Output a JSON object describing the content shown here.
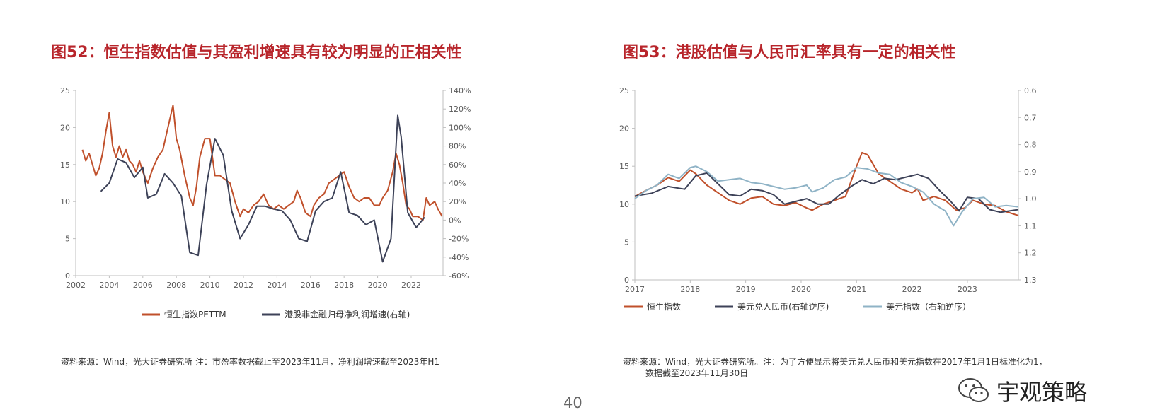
{
  "page": {
    "number": "40",
    "logo_text": "宇观策略",
    "logo_icon": "wechat-icon"
  },
  "left": {
    "title": "图52：恒生指数估值与其盈利增速具有较为明显的正相关性",
    "note": "资料来源：Wind，光大证券研究所  注：市盈率数据截止至2023年11月，净利润增速截至2023年H1"
  },
  "right": {
    "title": "图53：港股估值与人民币汇率具有一定的相关性",
    "note_line1": "资料来源：Wind，光大证券研究所。注：为了方便显示将美元兑人民币和美元指数在2017年1月1日标准化为1，",
    "note_line2": "数据截至2023年11月30日"
  },
  "colors": {
    "red": "#c0502b",
    "navy": "#3d4258",
    "lightblue": "#8fb3c6",
    "axis": "#bfbfbf",
    "tick": "#595959"
  },
  "chart_data": [
    {
      "type": "line",
      "title": "",
      "xlim": [
        2002,
        2023.9
      ],
      "ylim": [
        0,
        25
      ],
      "ylim_right": [
        -60,
        140
      ],
      "x_ticks": [
        2002,
        2004,
        2006,
        2008,
        2010,
        2012,
        2014,
        2016,
        2018,
        2020,
        2022
      ],
      "y_ticks": [
        0,
        5,
        10,
        15,
        20,
        25
      ],
      "y_right_ticks": [
        "-60%",
        "-40%",
        "-20%",
        "0%",
        "20%",
        "40%",
        "60%",
        "80%",
        "100%",
        "120%",
        "140%"
      ],
      "legend_position": "bottom",
      "series": [
        {
          "name": "恒生指数PETTM",
          "axis": "left",
          "color": "#c0502b",
          "x": [
            2002.4,
            2002.6,
            2002.8,
            2003.0,
            2003.2,
            2003.4,
            2003.6,
            2003.8,
            2004.0,
            2004.2,
            2004.4,
            2004.6,
            2004.8,
            2005.0,
            2005.2,
            2005.4,
            2005.6,
            2005.8,
            2006.0,
            2006.3,
            2006.6,
            2006.9,
            2007.2,
            2007.5,
            2007.8,
            2008.0,
            2008.2,
            2008.5,
            2008.8,
            2009.0,
            2009.2,
            2009.4,
            2009.7,
            2010.0,
            2010.3,
            2010.6,
            2010.9,
            2011.2,
            2011.5,
            2011.8,
            2012.0,
            2012.3,
            2012.6,
            2012.9,
            2013.2,
            2013.5,
            2013.8,
            2014.1,
            2014.4,
            2014.7,
            2015.0,
            2015.2,
            2015.4,
            2015.7,
            2016.0,
            2016.2,
            2016.5,
            2016.8,
            2017.1,
            2017.4,
            2017.7,
            2018.0,
            2018.3,
            2018.6,
            2018.9,
            2019.2,
            2019.5,
            2019.8,
            2020.1,
            2020.3,
            2020.6,
            2020.9,
            2021.1,
            2021.3,
            2021.5,
            2021.7,
            2021.9,
            2022.1,
            2022.4,
            2022.7,
            2022.9,
            2023.1,
            2023.4,
            2023.6,
            2023.85
          ],
          "y": [
            17,
            15.5,
            16.5,
            15,
            13.5,
            14.5,
            16.5,
            19.5,
            22,
            17.5,
            16,
            17.5,
            16,
            17,
            15.5,
            15,
            14,
            15.5,
            14,
            12.5,
            14.5,
            16,
            17,
            20,
            23,
            18.5,
            17,
            13.5,
            10.5,
            9.5,
            12,
            16,
            18.5,
            18.5,
            13.5,
            13.5,
            13,
            12.5,
            10,
            8,
            9,
            8.5,
            9.5,
            10,
            11,
            9.5,
            9,
            9.5,
            9,
            9.5,
            10,
            11.5,
            10.5,
            8.5,
            8,
            9.5,
            10.5,
            11,
            12.5,
            13,
            13.5,
            14,
            12,
            10.5,
            10,
            10.5,
            10.5,
            9.5,
            9.5,
            10.5,
            11.5,
            14,
            16.5,
            15,
            12.5,
            9.5,
            9,
            8,
            8,
            7.5,
            10.5,
            9.5,
            10,
            9,
            8
          ]
        },
        {
          "name": "港股非金融归母净利润增速(右轴)",
          "axis": "right",
          "color": "#3d4258",
          "x": [
            2003.5,
            2004.0,
            2004.5,
            2005.0,
            2005.5,
            2006.0,
            2006.3,
            2006.8,
            2007.3,
            2007.8,
            2008.3,
            2008.8,
            2009.3,
            2009.8,
            2010.3,
            2010.8,
            2011.3,
            2011.8,
            2012.3,
            2012.8,
            2013.3,
            2013.8,
            2014.3,
            2014.8,
            2015.3,
            2015.8,
            2016.3,
            2016.8,
            2017.3,
            2017.8,
            2018.3,
            2018.8,
            2019.3,
            2019.8,
            2020.3,
            2020.8,
            2021.2,
            2021.4,
            2021.8,
            2022.3,
            2022.8
          ],
          "y": [
            31,
            40,
            66,
            62,
            46,
            57,
            24,
            28,
            50,
            40,
            26,
            -35,
            -38,
            38,
            88,
            70,
            10,
            -20,
            -5,
            15,
            15,
            12,
            10,
            0,
            -20,
            -23,
            10,
            20,
            24,
            52,
            8,
            5,
            -5,
            0,
            -45,
            -20,
            113,
            90,
            8,
            -8,
            3
          ]
        }
      ]
    },
    {
      "type": "line",
      "title": "",
      "xlim": [
        2017,
        2023.92
      ],
      "ylim": [
        0,
        25
      ],
      "ylim_right": [
        1.3,
        0.6
      ],
      "x_ticks": [
        2017,
        2018,
        2019,
        2020,
        2021,
        2022,
        2023
      ],
      "y_ticks": [
        0,
        5,
        10,
        15,
        20,
        25
      ],
      "y_right_ticks": [
        "0.6",
        "0.7",
        "0.8",
        "0.9",
        "1.0",
        "1.1",
        "1.2",
        "1.3"
      ],
      "legend_position": "bottom",
      "series": [
        {
          "name": "恒生指数",
          "axis": "left",
          "color": "#c0502b",
          "x": [
            2017.0,
            2017.2,
            2017.4,
            2017.6,
            2017.8,
            2018.0,
            2018.1,
            2018.3,
            2018.5,
            2018.7,
            2018.9,
            2019.1,
            2019.3,
            2019.5,
            2019.7,
            2019.9,
            2020.1,
            2020.2,
            2020.4,
            2020.6,
            2020.8,
            2021.0,
            2021.1,
            2021.2,
            2021.4,
            2021.6,
            2021.8,
            2022.0,
            2022.1,
            2022.2,
            2022.4,
            2022.6,
            2022.8,
            2022.95,
            2023.1,
            2023.3,
            2023.5,
            2023.7,
            2023.92
          ],
          "y": [
            11,
            11.8,
            12.5,
            13.5,
            13,
            14.5,
            14,
            12.5,
            11.5,
            10.5,
            10,
            10.8,
            11,
            10,
            9.8,
            10.2,
            9.5,
            9.2,
            10,
            10.5,
            11,
            15,
            16.8,
            16.5,
            14,
            13,
            12,
            11.5,
            12,
            10.5,
            11,
            10.5,
            9.2,
            9.5,
            10.5,
            10,
            9.8,
            9,
            8.5
          ]
        },
        {
          "name": "美元兑人民币(右轴逆序)",
          "axis": "right",
          "color": "#3d4258",
          "x": [
            2017.0,
            2017.3,
            2017.6,
            2017.9,
            2018.1,
            2018.3,
            2018.5,
            2018.7,
            2018.9,
            2019.1,
            2019.3,
            2019.5,
            2019.7,
            2019.9,
            2020.1,
            2020.3,
            2020.5,
            2020.7,
            2020.9,
            2021.1,
            2021.3,
            2021.5,
            2021.7,
            2021.9,
            2022.1,
            2022.3,
            2022.5,
            2022.7,
            2022.85,
            2023.0,
            2023.2,
            2023.4,
            2023.6,
            2023.92
          ],
          "y": [
            0.99,
            0.98,
            0.955,
            0.965,
            0.915,
            0.905,
            0.945,
            0.985,
            0.99,
            0.965,
            0.97,
            0.985,
            1.02,
            1.01,
            1.0,
            1.02,
            1.02,
            0.985,
            0.955,
            0.93,
            0.945,
            0.925,
            0.93,
            0.92,
            0.91,
            0.925,
            0.97,
            1.01,
            1.045,
            0.995,
            1.0,
            1.04,
            1.05,
            1.04
          ]
        },
        {
          "name": "美元指数（右轴逆序）",
          "axis": "right",
          "color": "#8fb3c6",
          "x": [
            2017.0,
            2017.2,
            2017.4,
            2017.6,
            2017.8,
            2018.0,
            2018.1,
            2018.3,
            2018.5,
            2018.7,
            2018.9,
            2019.1,
            2019.3,
            2019.5,
            2019.7,
            2019.9,
            2020.1,
            2020.2,
            2020.4,
            2020.6,
            2020.8,
            2021.0,
            2021.2,
            2021.4,
            2021.6,
            2021.8,
            2022.0,
            2022.2,
            2022.4,
            2022.6,
            2022.75,
            2022.9,
            2023.1,
            2023.3,
            2023.5,
            2023.7,
            2023.92
          ],
          "y": [
            1.0,
            0.97,
            0.95,
            0.91,
            0.925,
            0.885,
            0.88,
            0.9,
            0.935,
            0.93,
            0.925,
            0.94,
            0.945,
            0.955,
            0.965,
            0.96,
            0.95,
            0.975,
            0.96,
            0.93,
            0.92,
            0.885,
            0.89,
            0.905,
            0.91,
            0.94,
            0.955,
            0.975,
            1.02,
            1.045,
            1.1,
            1.05,
            1.0,
            0.995,
            1.03,
            1.025,
            1.03
          ]
        }
      ]
    }
  ]
}
